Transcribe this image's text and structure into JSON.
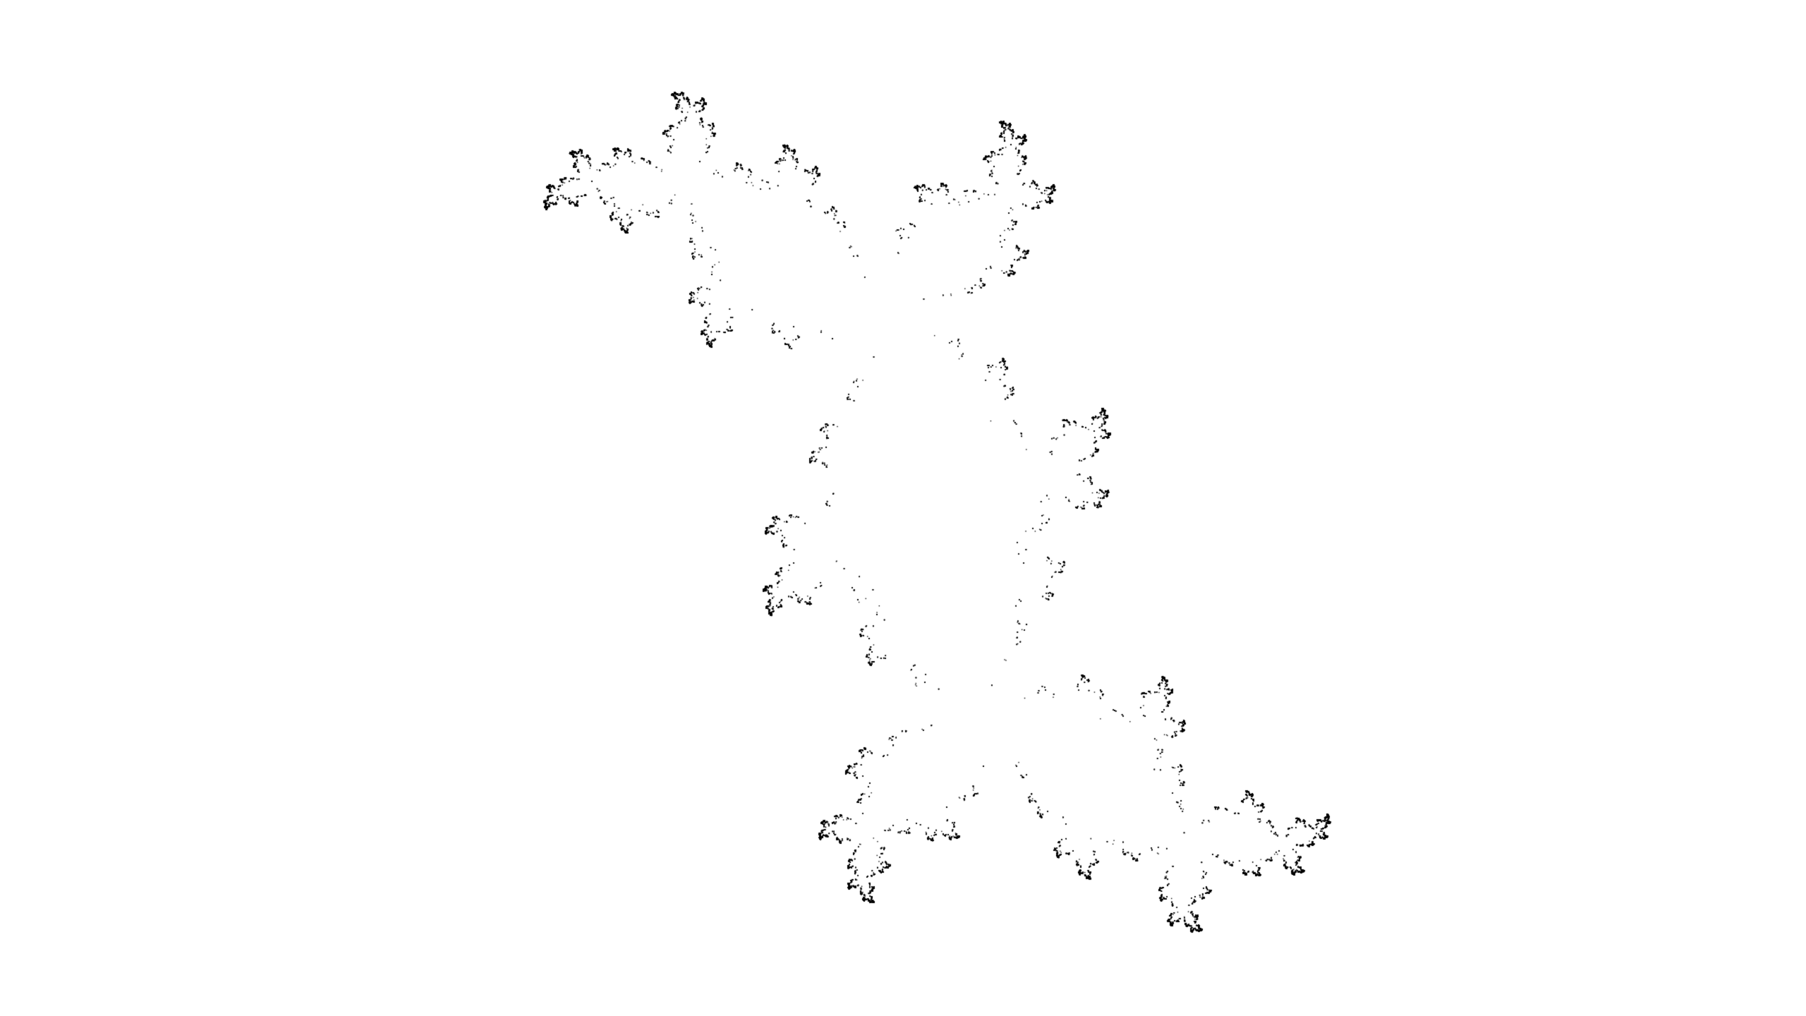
{
  "scene": {
    "background_color": "#ffffff",
    "point_color": "#000000",
    "subject": "julia-set-point-cloud",
    "fractal": {
      "type": "inverse-iteration-julia-set",
      "c_real": -0.1,
      "c_imag": 0.8,
      "points": 60000
    }
  }
}
